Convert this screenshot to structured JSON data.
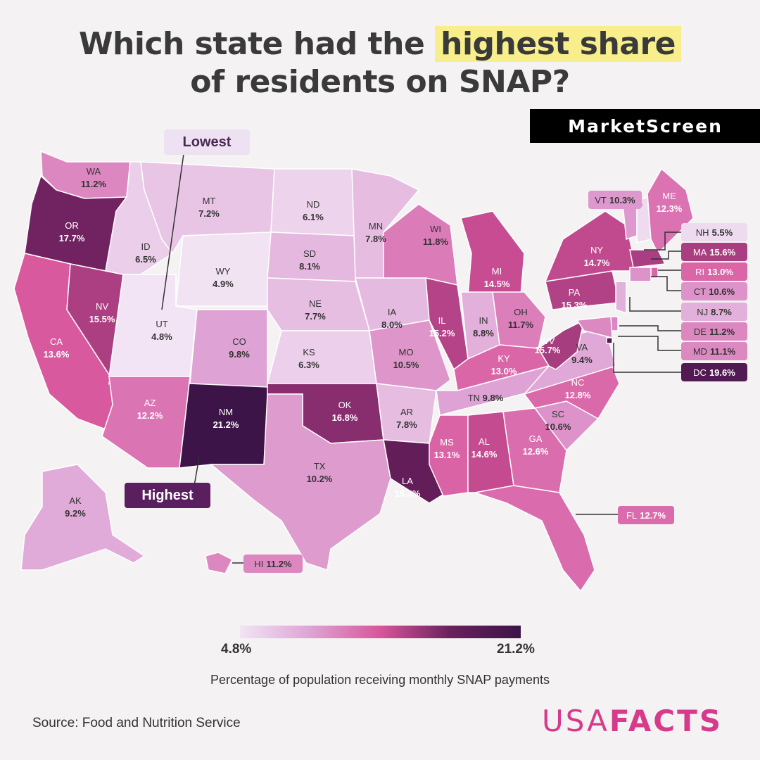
{
  "title": {
    "pre": "Which state had the",
    "highlight": "highest share",
    "line2": "of residents on SNAP?"
  },
  "brand": "MarketScreen",
  "labels": {
    "lowest": "Lowest",
    "highest": "Highest"
  },
  "legend": {
    "min": "4.8%",
    "max": "21.2%",
    "caption": "Percentage of population receiving monthly SNAP payments"
  },
  "source": "Source: Food and Nutrition Service",
  "logo": {
    "part1": "USA",
    "part2": "FACTS"
  },
  "colors": {
    "lightest": "#f2e4f4",
    "mid": "#d9559c",
    "darkest": "#3c1447",
    "highlight": "#f8ef8c"
  },
  "chart_data": {
    "type": "choropleth",
    "metric": "Percentage of population receiving monthly SNAP payments",
    "range": [
      "4.8%",
      "21.2%"
    ],
    "states": [
      {
        "code": "WA",
        "value": "11.2%"
      },
      {
        "code": "OR",
        "value": "17.7%"
      },
      {
        "code": "CA",
        "value": "13.6%"
      },
      {
        "code": "NV",
        "value": "15.5%"
      },
      {
        "code": "ID",
        "value": "6.5%"
      },
      {
        "code": "MT",
        "value": "7.2%"
      },
      {
        "code": "WY",
        "value": "4.9%"
      },
      {
        "code": "UT",
        "value": "4.8%"
      },
      {
        "code": "AZ",
        "value": "12.2%"
      },
      {
        "code": "NM",
        "value": "21.2%"
      },
      {
        "code": "CO",
        "value": "9.8%"
      },
      {
        "code": "ND",
        "value": "6.1%"
      },
      {
        "code": "SD",
        "value": "8.1%"
      },
      {
        "code": "NE",
        "value": "7.7%"
      },
      {
        "code": "KS",
        "value": "6.3%"
      },
      {
        "code": "OK",
        "value": "16.8%"
      },
      {
        "code": "TX",
        "value": "10.2%"
      },
      {
        "code": "MN",
        "value": "7.8%"
      },
      {
        "code": "IA",
        "value": "8.0%"
      },
      {
        "code": "MO",
        "value": "10.5%"
      },
      {
        "code": "AR",
        "value": "7.8%"
      },
      {
        "code": "LA",
        "value": "18.4%"
      },
      {
        "code": "WI",
        "value": "11.8%"
      },
      {
        "code": "IL",
        "value": "15.2%"
      },
      {
        "code": "MI",
        "value": "14.5%"
      },
      {
        "code": "IN",
        "value": "8.8%"
      },
      {
        "code": "OH",
        "value": "11.7%"
      },
      {
        "code": "KY",
        "value": "13.0%"
      },
      {
        "code": "TN",
        "value": "9.8%"
      },
      {
        "code": "MS",
        "value": "13.1%"
      },
      {
        "code": "AL",
        "value": "14.6%"
      },
      {
        "code": "GA",
        "value": "12.6%"
      },
      {
        "code": "FL",
        "value": "12.7%"
      },
      {
        "code": "SC",
        "value": "10.6%"
      },
      {
        "code": "NC",
        "value": "12.8%"
      },
      {
        "code": "VA",
        "value": "9.4%"
      },
      {
        "code": "WV",
        "value": "15.7%"
      },
      {
        "code": "PA",
        "value": "15.3%"
      },
      {
        "code": "NY",
        "value": "14.7%"
      },
      {
        "code": "VT",
        "value": "10.3%"
      },
      {
        "code": "NH",
        "value": "5.5%"
      },
      {
        "code": "ME",
        "value": "12.3%"
      },
      {
        "code": "MA",
        "value": "15.6%"
      },
      {
        "code": "RI",
        "value": "13.0%"
      },
      {
        "code": "CT",
        "value": "10.6%"
      },
      {
        "code": "NJ",
        "value": "8.7%"
      },
      {
        "code": "DE",
        "value": "11.2%"
      },
      {
        "code": "MD",
        "value": "11.1%"
      },
      {
        "code": "DC",
        "value": "19.6%"
      },
      {
        "code": "AK",
        "value": "9.2%"
      },
      {
        "code": "HI",
        "value": "11.2%"
      }
    ]
  }
}
